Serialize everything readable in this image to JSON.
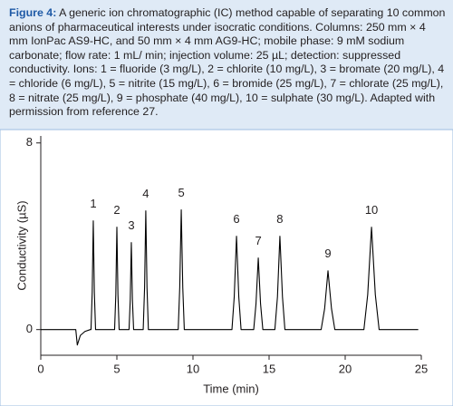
{
  "caption": {
    "label": "Figure 4:",
    "text": "A generic ion chromatographic (IC) method capable of separating 10 common anions of pharmaceutical interests under isocratic conditions. Columns: 250 mm × 4 mm IonPac AS9-HC, and 50 mm × 4 mm AG9-HC; mobile phase: 9 mM sodium carbonate; flow rate: 1 mL/ min; injection volume: 25 µL; detection: suppressed conductivity. Ions: 1 = fluoride (3 mg/L), 2 = chlorite (10 mg/L), 3 = bromate (20 mg/L), 4 = chloride (6 mg/L), 5 = nitrite (15 mg/L), 6 = bromide (25 mg/L), 7 = chlorate (25 mg/L), 8 = nitrate (25 mg/L), 9 = phosphate (40 mg/L), 10 = sulphate (30 mg/L). Adapted with permission from reference 27."
  },
  "chart_data": {
    "type": "line",
    "color": "#000000",
    "x_label": "Time (min)",
    "y_label": "Conductivity (µS)",
    "xlim": [
      0,
      25
    ],
    "xticks": [
      0,
      5,
      10,
      15,
      20,
      25
    ],
    "ylim": [
      -1.1,
      8.3
    ],
    "yticks": [
      0,
      8
    ],
    "x": [
      0,
      2.3,
      2.4,
      2.6,
      2.9,
      3.25,
      3.3,
      3.38,
      3.45,
      3.52,
      3.6,
      4.85,
      4.93,
      5.0,
      5.07,
      5.15,
      5.8,
      5.88,
      5.95,
      6.02,
      6.1,
      6.73,
      6.82,
      6.9,
      6.98,
      7.07,
      9.03,
      9.13,
      9.23,
      9.33,
      9.43,
      12.56,
      12.71,
      12.86,
      13.01,
      13.16,
      13.99,
      14.14,
      14.29,
      14.44,
      14.59,
      15.38,
      15.55,
      15.71,
      15.88,
      16.04,
      18.42,
      18.65,
      18.87,
      19.1,
      19.32,
      21.23,
      21.48,
      21.73,
      21.98,
      22.23,
      24.8
    ],
    "values": [
      0,
      0,
      -0.66,
      -0.25,
      -0.08,
      0,
      0,
      1.6,
      4.66,
      1.6,
      0,
      0,
      1.5,
      4.39,
      1.5,
      0,
      0,
      1.3,
      3.73,
      1.3,
      0,
      0,
      1.8,
      5.09,
      1.8,
      0,
      0,
      1.8,
      5.13,
      1.8,
      0,
      0,
      1.4,
      4.0,
      1.4,
      0,
      0,
      1.1,
      3.07,
      1.1,
      0,
      0,
      1.4,
      4.0,
      1.4,
      0,
      0,
      0.9,
      2.52,
      0.9,
      0,
      0,
      1.5,
      4.39,
      1.5,
      0,
      0
    ],
    "peak_labels": [
      {
        "label": "1",
        "x": 3.45
      },
      {
        "label": "2",
        "x": 5.0
      },
      {
        "label": "3",
        "x": 5.95
      },
      {
        "label": "4",
        "x": 6.9
      },
      {
        "label": "5",
        "x": 9.23
      },
      {
        "label": "6",
        "x": 12.86
      },
      {
        "label": "7",
        "x": 14.29
      },
      {
        "label": "8",
        "x": 15.71
      },
      {
        "label": "9",
        "x": 18.87
      },
      {
        "label": "10",
        "x": 21.73
      }
    ]
  }
}
